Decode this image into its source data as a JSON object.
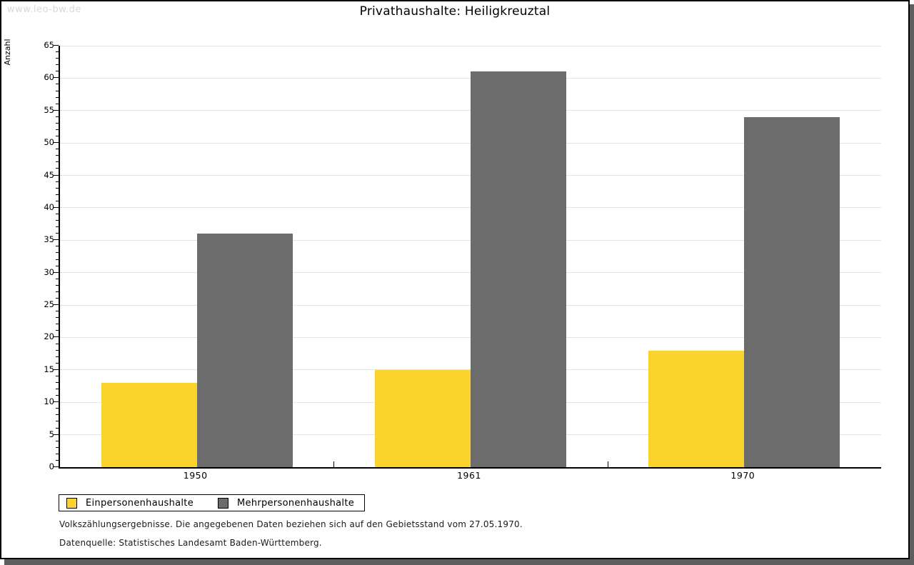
{
  "watermark": "www.leo-bw.de",
  "title": "Privathaushalte: Heiligkreuztal",
  "chart_data": {
    "type": "bar",
    "title": "Privathaushalte: Heiligkreuztal",
    "ylabel": "Anzahl",
    "categories": [
      "1950",
      "1961",
      "1970"
    ],
    "series": [
      {
        "name": "Einpersonenhaushalte",
        "color": "#FCD32C",
        "values": [
          13,
          15,
          18
        ]
      },
      {
        "name": "Mehrpersonenhaushalte",
        "color": "#6C6C6C",
        "values": [
          36,
          61,
          54
        ]
      }
    ],
    "ylim": [
      0,
      65
    ],
    "ytick_major": 5,
    "ytick_minor": 1,
    "grid": true,
    "legend_position": "bottom-left"
  },
  "footnotes": [
    "Volkszählungsergebnisse. Die angegebenen Daten beziehen sich auf den Gebietsstand vom 27.05.1970.",
    "Datenquelle: Statistisches Landesamt Baden-Württemberg."
  ],
  "colors": {
    "grid": "#E4E4E4",
    "axis": "#000000",
    "watermark": "#D9D9D9",
    "shadow": "#5E5E5E"
  }
}
